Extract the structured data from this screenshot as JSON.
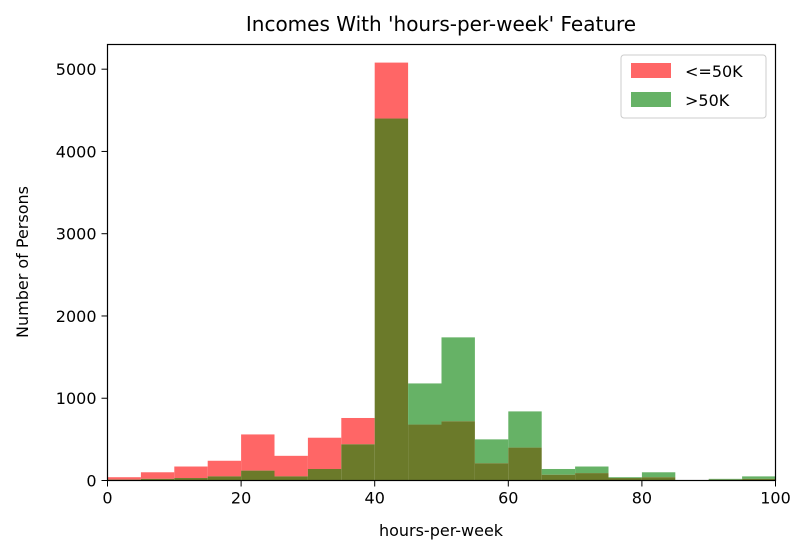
{
  "chart_data": {
    "type": "bar",
    "title": "Incomes With 'hours-per-week' Feature",
    "xlabel": "hours-per-week",
    "ylabel": "Number of Persons",
    "xlim": [
      0,
      100
    ],
    "ylim": [
      0,
      5300
    ],
    "x_ticks": [
      0,
      20,
      40,
      60,
      80,
      100
    ],
    "y_ticks": [
      0,
      1000,
      2000,
      3000,
      4000,
      5000
    ],
    "bin_edges": [
      0,
      5,
      10,
      15,
      20,
      25,
      30,
      35,
      40,
      45,
      50,
      55,
      60,
      65,
      70,
      75,
      80,
      85,
      90,
      95,
      100
    ],
    "series": [
      {
        "name": "<=50K",
        "color": "#ff6666",
        "values": [
          40,
          100,
          170,
          240,
          560,
          300,
          520,
          760,
          5080,
          680,
          720,
          210,
          400,
          70,
          90,
          30,
          40,
          5,
          10,
          20
        ]
      },
      {
        "name": ">50K",
        "color": "#66b266",
        "values": [
          10,
          20,
          30,
          50,
          120,
          50,
          140,
          440,
          4400,
          1180,
          1740,
          500,
          840,
          140,
          170,
          40,
          100,
          5,
          20,
          50
        ]
      }
    ],
    "overlap_color": "#6b7a2a",
    "legend_position": "top-right",
    "grid": false
  }
}
